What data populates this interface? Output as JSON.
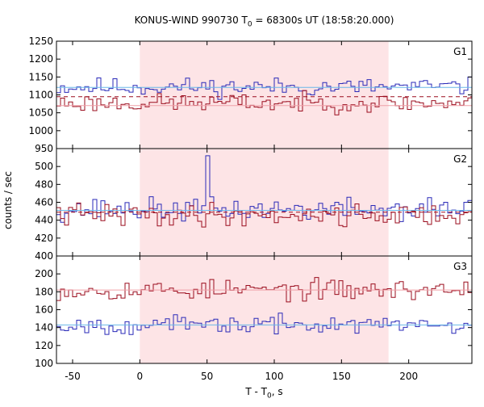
{
  "title_main": "KONUS-WIND 990730 T",
  "title_sub": "0",
  "title_rest": " = 68300s UT (18:58:20.000)",
  "xlabel_main": "T - T",
  "xlabel_sub": "0",
  "xlabel_rest": ", s",
  "ylabel": "counts / sec",
  "colors": {
    "red": "#9b0d1e",
    "blue": "#2a2ab8",
    "fit_blue": "#6ab8e8",
    "fit_red": "#f0a0a8",
    "shade": "#fde4e6"
  },
  "chart_data": [
    {
      "type": "line",
      "panel": "G1",
      "shaded_x_range": [
        0,
        185
      ],
      "xlim": [
        -62,
        247
      ],
      "ylim": [
        950,
        1250
      ],
      "x_ticks": [
        -50,
        0,
        50,
        100,
        150,
        200
      ],
      "y_ticks": [
        950,
        1000,
        1050,
        1100,
        1150,
        1200,
        1250
      ],
      "bin_width": 3,
      "x_start": -62,
      "series": [
        {
          "color": "blue",
          "level": 1122,
          "amplitude": 18,
          "fit": 1121,
          "fit_style": "solid",
          "fit_color": "fit_blue",
          "seed": 11
        },
        {
          "color": "red",
          "level": 1077,
          "amplitude": 18,
          "fit": 1095,
          "fit_style": "dashed",
          "fit_color": "red",
          "fit2": 1070,
          "fit2_color": "fit_red",
          "seed": 23
        }
      ]
    },
    {
      "type": "line",
      "panel": "G2",
      "shaded_x_range": [
        0,
        185
      ],
      "xlim": [
        -62,
        247
      ],
      "ylim": [
        400,
        520
      ],
      "x_ticks": [
        -50,
        0,
        50,
        100,
        150,
        200
      ],
      "y_ticks": [
        400,
        420,
        440,
        460,
        480,
        500
      ],
      "bin_width": 3,
      "x_start": -62,
      "series": [
        {
          "color": "blue",
          "level": 452,
          "amplitude": 9,
          "fit": 451,
          "fit_style": "solid",
          "fit_color": "fit_blue",
          "seed": 37,
          "spike_x": 50,
          "spike_y": 512
        },
        {
          "color": "red",
          "level": 446,
          "amplitude": 9,
          "fit": 449,
          "fit_style": "dashed",
          "fit_color": "red",
          "seed": 41
        }
      ]
    },
    {
      "type": "line",
      "panel": "G3",
      "shaded_x_range": [
        0,
        185
      ],
      "xlim": [
        -62,
        247
      ],
      "ylim": [
        100,
        220
      ],
      "x_ticks": [
        -50,
        0,
        50,
        100,
        150,
        200
      ],
      "y_ticks": [
        100,
        120,
        140,
        160,
        180,
        200
      ],
      "bin_width": 3,
      "x_start": -62,
      "series": [
        {
          "color": "red",
          "level": 182,
          "amplitude": 8,
          "fit": 182,
          "fit_style": "solid",
          "fit_color": "fit_red",
          "seed": 53
        },
        {
          "color": "blue",
          "level": 143,
          "amplitude": 7,
          "fit": 143,
          "fit_style": "solid",
          "fit_color": "fit_blue",
          "seed": 67
        }
      ]
    }
  ]
}
